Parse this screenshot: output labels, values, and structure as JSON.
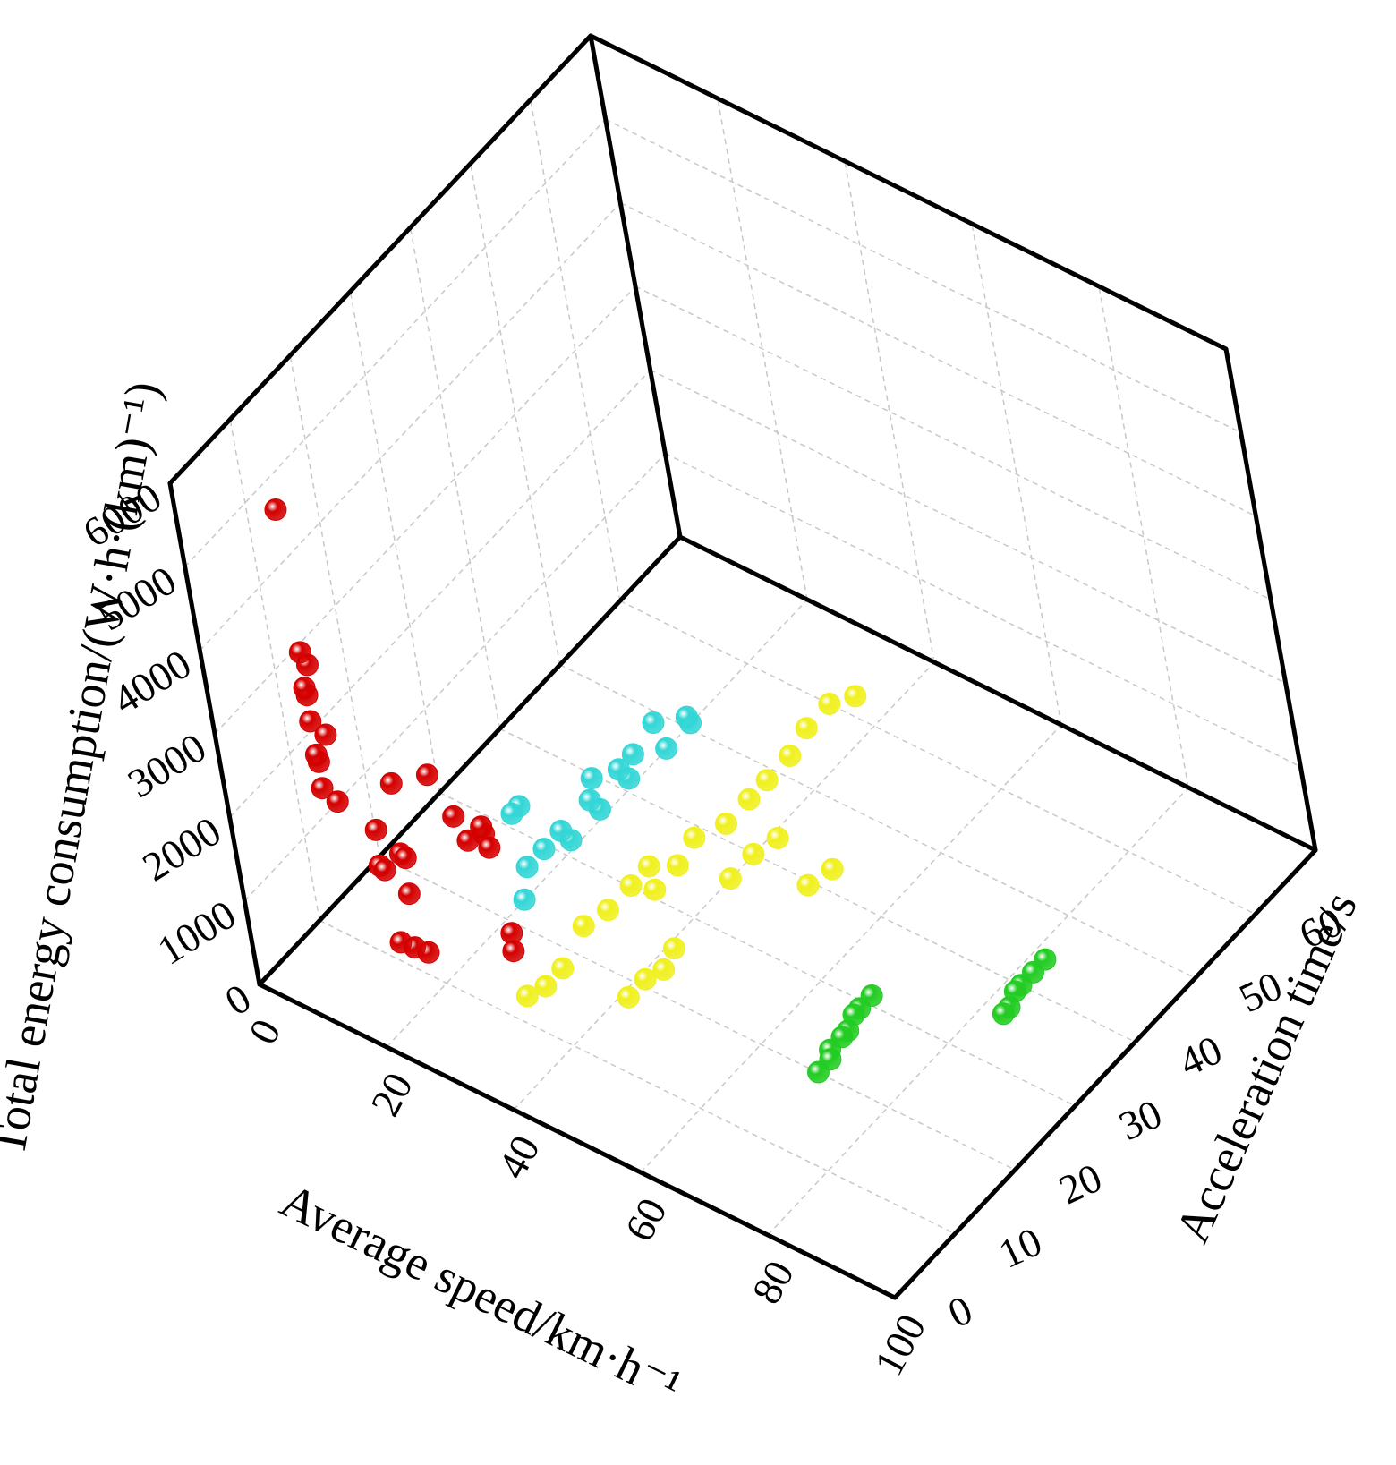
{
  "chart_data": {
    "type": "scatter3d",
    "x_label": "Average speed/km·h⁻¹",
    "y_label": "Acceleration time/s",
    "z_label": "Total energy consumption/(W·h·(km)⁻¹)",
    "xlim": [
      0,
      100
    ],
    "ylim": [
      0,
      70
    ],
    "zlim": [
      0,
      6000
    ],
    "xticks": [
      0,
      20,
      40,
      60,
      80,
      100
    ],
    "yticks": [
      0,
      10,
      20,
      30,
      40,
      50,
      60
    ],
    "zticks": [
      0,
      1000,
      2000,
      3000,
      4000,
      5000,
      6000
    ],
    "grid": true,
    "series": [
      {
        "color": "#d40000",
        "x": [
          10,
          16,
          7,
          7,
          6,
          7,
          8,
          7,
          6,
          7,
          8,
          15,
          17,
          18,
          20,
          16,
          19,
          23,
          24,
          22,
          30,
          32,
          33,
          31,
          34,
          34,
          35,
          24,
          28
        ],
        "y": [
          6,
          1,
          9,
          8,
          9,
          8,
          9,
          8,
          9,
          8,
          9,
          8,
          6,
          9,
          7,
          10,
          5,
          4,
          5,
          3,
          7,
          9,
          6,
          10,
          8,
          9,
          8,
          4,
          6
        ],
        "z": [
          5600,
          4500,
          3400,
          3200,
          3000,
          2800,
          2600,
          2400,
          2200,
          2000,
          1800,
          1800,
          1600,
          1500,
          1300,
          1400,
          1700,
          1000,
          900,
          1100,
          2600,
          2400,
          2500,
          2200,
          2300,
          1200,
          1100,
          3000,
          3100
        ]
      },
      {
        "color": "#33d6d6",
        "x": [
          35,
          36,
          37,
          36,
          38,
          37,
          39,
          38,
          37,
          39,
          38,
          40,
          39,
          36,
          38,
          33,
          34
        ],
        "y": [
          12,
          14,
          16,
          18,
          20,
          22,
          24,
          26,
          28,
          30,
          32,
          34,
          20,
          10,
          36,
          14,
          12
        ],
        "z": [
          1800,
          1900,
          2000,
          1700,
          2100,
          1800,
          2200,
          1900,
          2000,
          2300,
          1800,
          2100,
          2400,
          1600,
          1800,
          2300,
          2400
        ]
      },
      {
        "color": "#f0f01e",
        "x": [
          36,
          37,
          38,
          46,
          47,
          48,
          48,
          38,
          39,
          40,
          40,
          44,
          45,
          45,
          46,
          47,
          47,
          48,
          50,
          51,
          52,
          57,
          58,
          48,
          49,
          50
        ],
        "y": [
          8,
          10,
          12,
          14,
          16,
          18,
          20,
          16,
          19,
          22,
          25,
          22,
          25,
          28,
          32,
          35,
          38,
          41,
          28,
          31,
          34,
          33,
          36,
          44,
          47,
          50
        ],
        "z": [
          600,
          600,
          700,
          500,
          600,
          600,
          700,
          900,
          900,
          1000,
          1000,
          1100,
          1200,
          1300,
          1200,
          1300,
          1300,
          1400,
          1000,
          1100,
          1100,
          800,
          800,
          1500,
          1600,
          1500
        ]
      },
      {
        "color": "#22cc22",
        "x": [
          74,
          74,
          73,
          73,
          73,
          72,
          72,
          72,
          88,
          88,
          87,
          87,
          87,
          87
        ],
        "y": [
          16,
          18,
          19,
          21,
          22,
          24,
          25,
          27,
          32,
          33,
          35,
          36,
          38,
          40
        ],
        "z": [
          500,
          500,
          500,
          500,
          500,
          500,
          500,
          500,
          500,
          500,
          500,
          500,
          500,
          500
        ]
      }
    ]
  }
}
